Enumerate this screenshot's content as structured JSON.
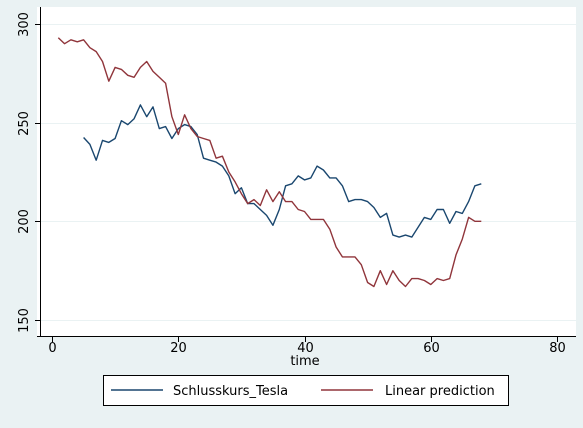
{
  "chart_data": {
    "type": "line",
    "title": "",
    "xlabel": "time",
    "ylabel": "",
    "xlim": [
      0,
      80
    ],
    "ylim": [
      150,
      300
    ],
    "xticks": [
      0,
      20,
      40,
      60,
      80
    ],
    "yticks": [
      150,
      200,
      250,
      300
    ],
    "grid": "horizontal",
    "legend_position": "bottom",
    "colors": {
      "background": "#eaf2f3",
      "plot_background": "#ffffff",
      "grid": "#eaf2f3",
      "series_1": "#1a476f",
      "series_2": "#90353b"
    },
    "series": [
      {
        "name": "Schlusskurs_Tesla",
        "x": [
          5,
          6,
          7,
          8,
          9,
          10,
          11,
          12,
          13,
          14,
          15,
          16,
          17,
          18,
          19,
          20,
          21,
          22,
          23,
          24,
          25,
          26,
          27,
          28,
          29,
          30,
          31,
          32,
          33,
          34,
          35,
          36,
          37,
          38,
          39,
          40,
          41,
          42,
          43,
          44,
          45,
          46,
          47,
          48,
          49,
          50,
          51,
          52,
          53,
          54,
          55,
          56,
          57,
          58,
          59,
          60,
          61,
          62,
          63,
          64,
          65,
          66,
          67,
          68
        ],
        "values": [
          242.5,
          239,
          231,
          241,
          240,
          242,
          251,
          249,
          252,
          259,
          253,
          258,
          247,
          248,
          242,
          247,
          249,
          248,
          244,
          232,
          231,
          230,
          228,
          223,
          214,
          217,
          209,
          209,
          206,
          203,
          198,
          206,
          218,
          219,
          223,
          221,
          222,
          228,
          226,
          222,
          222,
          218,
          210,
          211,
          211,
          210,
          207,
          202,
          204,
          193,
          192,
          193,
          192,
          197,
          202,
          201,
          206,
          206,
          199,
          205,
          204,
          210,
          218,
          219
        ]
      },
      {
        "name": "Linear prediction",
        "x": [
          1,
          2,
          3,
          4,
          5,
          6,
          7,
          8,
          9,
          10,
          11,
          12,
          13,
          14,
          15,
          16,
          17,
          18,
          19,
          20,
          21,
          22,
          23,
          24,
          25,
          26,
          27,
          28,
          29,
          30,
          31,
          32,
          33,
          34,
          35,
          36,
          37,
          38,
          39,
          40,
          41,
          42,
          43,
          44,
          45,
          46,
          47,
          48,
          49,
          50,
          51,
          52,
          53,
          54,
          55,
          56,
          57,
          58,
          59,
          60,
          61,
          62,
          63,
          64,
          65,
          66,
          67,
          68
        ],
        "values": [
          293,
          290,
          292,
          291,
          292,
          288,
          286,
          281,
          271,
          278,
          277,
          274,
          273,
          278,
          281,
          276,
          273,
          270,
          253,
          244,
          254,
          247,
          243,
          242,
          241,
          232,
          233,
          225,
          220,
          214,
          209,
          211,
          208,
          216,
          210,
          215,
          210,
          210,
          206,
          205,
          201,
          201,
          201,
          196,
          187,
          182,
          182,
          182,
          178,
          169,
          167,
          175,
          168,
          175,
          170,
          167,
          171,
          171,
          170,
          168,
          171,
          170,
          171,
          183,
          191,
          202,
          200,
          200
        ]
      }
    ]
  }
}
